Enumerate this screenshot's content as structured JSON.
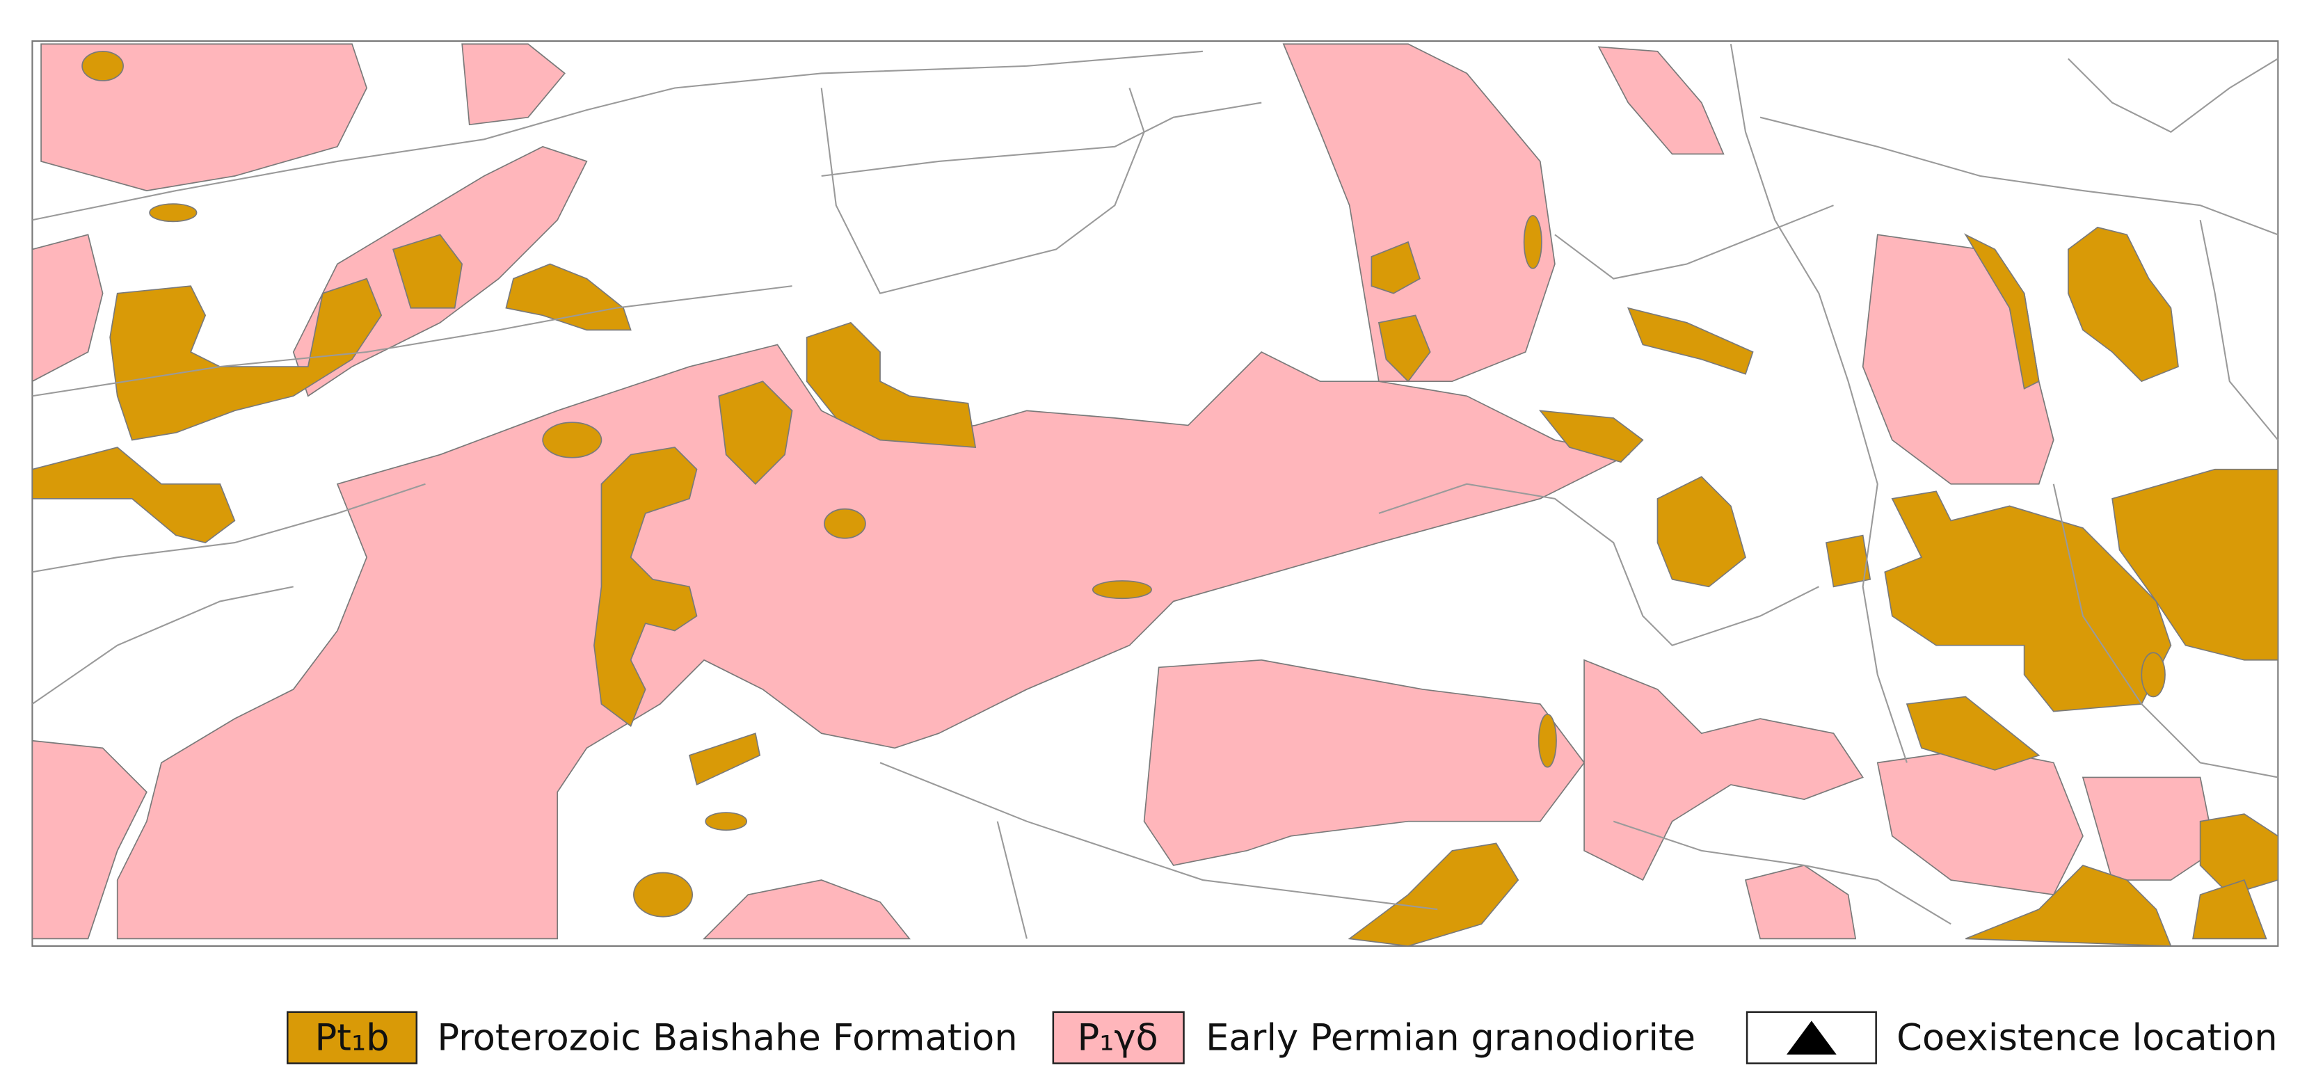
{
  "legend": [
    {
      "symbol": "Pt₁b",
      "label": "Proterozoic Baishahe Formation",
      "color": "#d99a07"
    },
    {
      "symbol": "P₁γδ",
      "label": "Early Permian granodiorite",
      "color": "#ffb6bb"
    },
    {
      "label": "Coexistence location",
      "color": "#ffffff"
    }
  ]
}
